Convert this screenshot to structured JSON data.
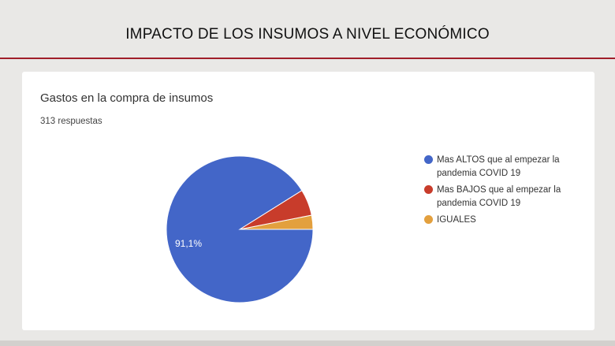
{
  "slide": {
    "title": "IMPACTO DE LOS INSUMOS A NIVEL ECONÓMICO"
  },
  "card": {
    "title": "Gastos en la compra de insumos",
    "responses": "313 respuestas"
  },
  "chart_data": {
    "type": "pie",
    "title": "Gastos en la compra de insumos",
    "categories": [
      "Mas ALTOS que al empezar la pandemia COVID 19",
      "Mas BAJOS que al empezar la pandemia COVID 19",
      "IGUALES"
    ],
    "values": [
      91.1,
      5.8,
      3.1
    ],
    "colors": [
      "#4366c8",
      "#c83c2b",
      "#e3a03e"
    ],
    "data_labels": [
      "91,1%",
      "",
      ""
    ],
    "start_angle_deg": 0,
    "direction": "counterclockwise-from-3-oclock",
    "legend_position": "right"
  }
}
